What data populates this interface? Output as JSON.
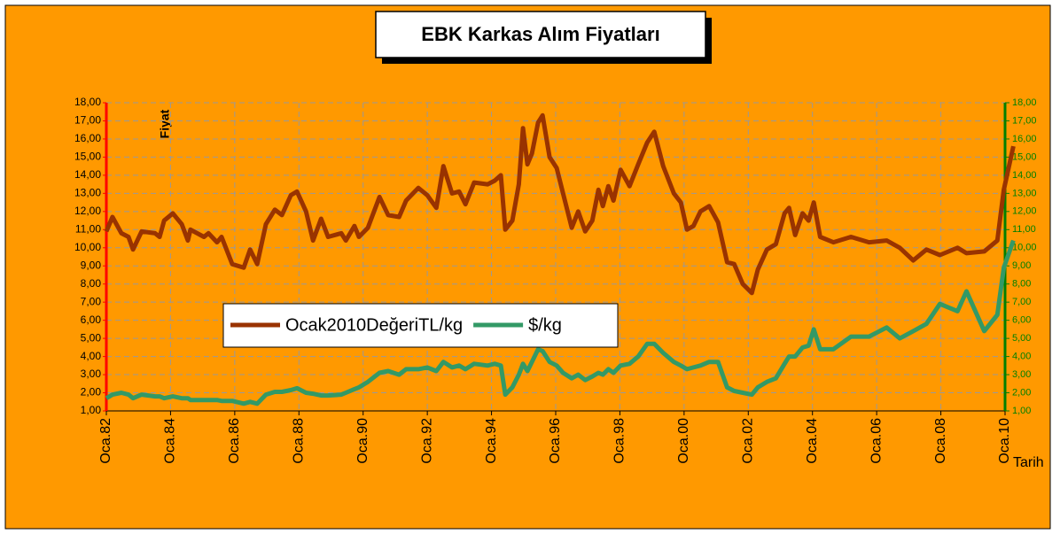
{
  "chart_data": {
    "type": "line",
    "title": "EBK Karkas Alım Fiyatları",
    "ylabel": "Fiyat",
    "xlabel": "Tarih",
    "x": [
      1982.0,
      1982.19,
      1982.47,
      1982.69,
      1982.83,
      1983.1,
      1983.52,
      1983.66,
      1983.8,
      1984.07,
      1984.35,
      1984.54,
      1984.62,
      1985.04,
      1985.18,
      1985.45,
      1985.59,
      1985.92,
      1986.28,
      1986.48,
      1986.7,
      1986.97,
      1987.25,
      1987.47,
      1987.75,
      1987.94,
      1988.22,
      1988.44,
      1988.69,
      1988.91,
      1989.32,
      1989.46,
      1989.73,
      1989.87,
      1990.15,
      1990.51,
      1990.78,
      1991.12,
      1991.34,
      1991.72,
      1992.0,
      1992.28,
      1992.5,
      1992.77,
      1992.99,
      1993.19,
      1993.46,
      1993.88,
      1994.1,
      1994.29,
      1994.43,
      1994.65,
      1994.85,
      1994.98,
      1995.12,
      1995.26,
      1995.45,
      1995.59,
      1995.81,
      1996.03,
      1996.23,
      1996.5,
      1996.7,
      1996.92,
      1997.14,
      1997.33,
      1997.47,
      1997.64,
      1997.8,
      1998.02,
      1998.3,
      1998.57,
      1998.85,
      1999.07,
      1999.35,
      1999.68,
      1999.9,
      2000.09,
      2000.29,
      2000.51,
      2000.78,
      2001.06,
      2001.34,
      2001.56,
      2001.83,
      2002.11,
      2002.3,
      2002.58,
      2002.86,
      2003.13,
      2003.27,
      2003.46,
      2003.69,
      2003.88,
      2004.04,
      2004.24,
      2004.65,
      2005.2,
      2005.76,
      2006.31,
      2006.72,
      2007.14,
      2007.55,
      2007.97,
      2008.52,
      2008.8,
      2009.35,
      2009.76,
      2009.96,
      2010.26
    ],
    "series": [
      {
        "name": "Ocak2010DeğeriTL/kg",
        "color": "#993300",
        "axis": "y",
        "values": [
          10.9,
          11.7,
          10.8,
          10.6,
          9.9,
          10.9,
          10.8,
          10.6,
          11.5,
          11.9,
          11.3,
          10.4,
          11.0,
          10.6,
          10.8,
          10.3,
          10.6,
          9.1,
          8.9,
          9.9,
          9.1,
          11.3,
          12.1,
          11.8,
          12.9,
          13.1,
          12.0,
          10.4,
          11.6,
          10.6,
          10.8,
          10.4,
          11.2,
          10.6,
          11.1,
          12.8,
          11.8,
          11.7,
          12.6,
          13.3,
          12.9,
          12.2,
          14.5,
          13.0,
          13.1,
          12.4,
          13.6,
          13.5,
          13.7,
          14.0,
          11.0,
          11.5,
          13.5,
          16.6,
          14.6,
          15.2,
          16.9,
          17.3,
          15.0,
          14.4,
          13.0,
          11.1,
          12.0,
          10.9,
          11.5,
          13.2,
          12.3,
          13.4,
          12.6,
          14.3,
          13.4,
          14.6,
          15.8,
          16.4,
          14.5,
          13.0,
          12.5,
          11.0,
          11.2,
          12.0,
          12.3,
          11.4,
          9.2,
          9.1,
          8.0,
          7.5,
          8.8,
          9.9,
          10.2,
          11.9,
          12.2,
          10.7,
          11.9,
          11.5,
          12.5,
          10.6,
          10.3,
          10.6,
          10.3,
          10.4,
          10.0,
          9.3,
          9.9,
          9.6,
          10.0,
          9.7,
          9.8,
          10.4,
          13.2,
          15.6
        ]
      },
      {
        "name": "$/kg",
        "color": "#339966",
        "axis": "y2",
        "values": [
          1.7,
          1.9,
          2.0,
          1.9,
          1.7,
          1.9,
          1.8,
          1.8,
          1.7,
          1.8,
          1.7,
          1.7,
          1.6,
          1.6,
          1.6,
          1.6,
          1.55,
          1.55,
          1.4,
          1.5,
          1.4,
          1.9,
          2.05,
          2.05,
          2.15,
          2.25,
          2.0,
          1.95,
          1.85,
          1.85,
          1.9,
          2.0,
          2.2,
          2.3,
          2.6,
          3.1,
          3.2,
          3.0,
          3.3,
          3.3,
          3.4,
          3.2,
          3.7,
          3.4,
          3.5,
          3.3,
          3.6,
          3.5,
          3.6,
          3.5,
          1.9,
          2.3,
          3.0,
          3.6,
          3.2,
          3.7,
          4.4,
          4.3,
          3.7,
          3.5,
          3.1,
          2.8,
          3.0,
          2.7,
          2.9,
          3.1,
          3.0,
          3.3,
          3.1,
          3.5,
          3.6,
          4.0,
          4.7,
          4.7,
          4.2,
          3.7,
          3.5,
          3.3,
          3.4,
          3.5,
          3.7,
          3.7,
          2.3,
          2.1,
          2.0,
          1.9,
          2.3,
          2.6,
          2.8,
          3.6,
          4.0,
          4.0,
          4.5,
          4.6,
          5.5,
          4.4,
          4.4,
          5.1,
          5.1,
          5.6,
          5.0,
          5.4,
          5.8,
          6.9,
          6.5,
          7.6,
          5.4,
          6.3,
          8.9,
          10.4
        ]
      }
    ],
    "xlim": [
      1982,
      2010
    ],
    "xticks": [
      {
        "value": 1982,
        "label": "Oca.82"
      },
      {
        "value": 1984,
        "label": "Oca.84"
      },
      {
        "value": 1986,
        "label": "Oca.86"
      },
      {
        "value": 1988,
        "label": "Oca.88"
      },
      {
        "value": 1990,
        "label": "Oca.90"
      },
      {
        "value": 1992,
        "label": "Oca.92"
      },
      {
        "value": 1994,
        "label": "Oca.94"
      },
      {
        "value": 1996,
        "label": "Oca.96"
      },
      {
        "value": 1998,
        "label": "Oca.98"
      },
      {
        "value": 2000,
        "label": "Oca.00"
      },
      {
        "value": 2002,
        "label": "Oca.02"
      },
      {
        "value": 2004,
        "label": "Oca.04"
      },
      {
        "value": 2006,
        "label": "Oca.06"
      },
      {
        "value": 2008,
        "label": "Oca.08"
      },
      {
        "value": 2010,
        "label": "Oca.10"
      }
    ],
    "ylim": [
      1,
      18
    ],
    "yticks": [
      {
        "value": 1,
        "label": "1,00"
      },
      {
        "value": 2,
        "label": "2,00"
      },
      {
        "value": 3,
        "label": "3,00"
      },
      {
        "value": 4,
        "label": "4,00"
      },
      {
        "value": 5,
        "label": "5,00"
      },
      {
        "value": 6,
        "label": "6,00"
      },
      {
        "value": 7,
        "label": "7,00"
      },
      {
        "value": 8,
        "label": "8,00"
      },
      {
        "value": 9,
        "label": "9,00"
      },
      {
        "value": 10,
        "label": "10,00"
      },
      {
        "value": 11,
        "label": "11,00"
      },
      {
        "value": 12,
        "label": "12,00"
      },
      {
        "value": 13,
        "label": "13,00"
      },
      {
        "value": 14,
        "label": "14,00"
      },
      {
        "value": 15,
        "label": "15,00"
      },
      {
        "value": 16,
        "label": "16,00"
      },
      {
        "value": 17,
        "label": "17,00"
      },
      {
        "value": 18,
        "label": "18,00"
      }
    ],
    "y2lim": [
      1,
      18
    ],
    "y2ticks": [
      {
        "value": 1,
        "label": "1,00"
      },
      {
        "value": 2,
        "label": "2,00"
      },
      {
        "value": 3,
        "label": "3,00"
      },
      {
        "value": 4,
        "label": "4,00"
      },
      {
        "value": 5,
        "label": "5,00"
      },
      {
        "value": 6,
        "label": "6,00"
      },
      {
        "value": 7,
        "label": "7,00"
      },
      {
        "value": 8,
        "label": "8,00"
      },
      {
        "value": 9,
        "label": "9,00"
      },
      {
        "value": 10,
        "label": "10,00"
      },
      {
        "value": 11,
        "label": "11,00"
      },
      {
        "value": 12,
        "label": "12,00"
      },
      {
        "value": 13,
        "label": "13,00"
      },
      {
        "value": 14,
        "label": "14,00"
      },
      {
        "value": 15,
        "label": "15,00"
      },
      {
        "value": 16,
        "label": "16,00"
      },
      {
        "value": 17,
        "label": "17,00"
      },
      {
        "value": 18,
        "label": "18,00"
      }
    ],
    "grid": true
  }
}
